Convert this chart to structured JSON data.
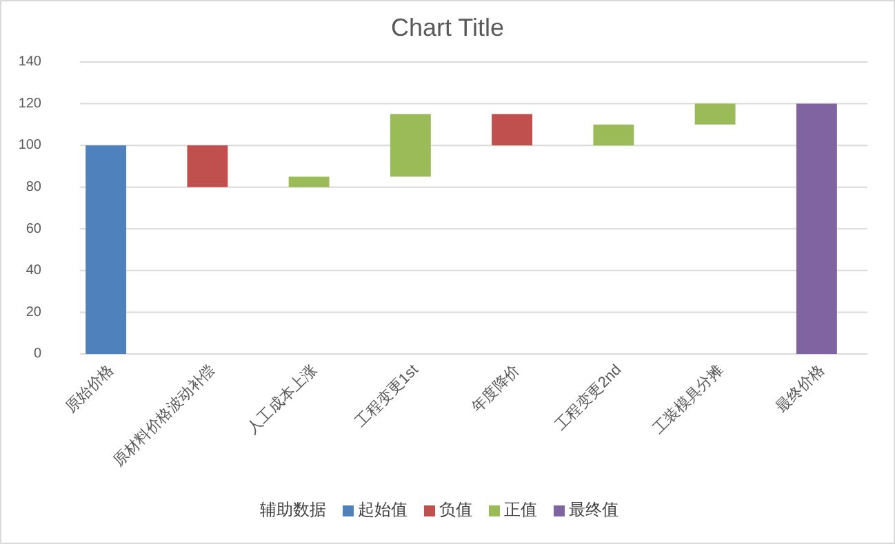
{
  "chart_data": {
    "type": "bar",
    "title": "Chart Title",
    "categories": [
      "原始价格",
      "原材料价格波动补偿",
      "人工成本上涨",
      "工程变更1st",
      "年度降价",
      "工程变更2nd",
      "工装模具分摊",
      "最终价格"
    ],
    "series": [
      {
        "name": "起始值",
        "color": "#4f81bd",
        "values": [
          100,
          null,
          null,
          null,
          null,
          null,
          null,
          null
        ],
        "base": [
          0,
          null,
          null,
          null,
          null,
          null,
          null,
          null
        ]
      },
      {
        "name": "负值",
        "color": "#c0504d",
        "values": [
          null,
          -20,
          null,
          null,
          -15,
          null,
          null,
          null
        ],
        "base": [
          null,
          100,
          null,
          null,
          115,
          null,
          null,
          null
        ]
      },
      {
        "name": "正值",
        "color": "#9bbb59",
        "values": [
          null,
          null,
          5,
          30,
          null,
          10,
          10,
          null
        ],
        "base": [
          null,
          null,
          80,
          85,
          null,
          100,
          110,
          null
        ]
      },
      {
        "name": "最终值",
        "color": "#8064a2",
        "values": [
          null,
          null,
          null,
          null,
          null,
          null,
          null,
          120
        ],
        "base": [
          null,
          null,
          null,
          null,
          null,
          null,
          null,
          0
        ]
      }
    ],
    "legend_title": "辅助数据",
    "legend": "bottom",
    "ylim": [
      0,
      140
    ],
    "yticks": [
      0,
      20,
      40,
      60,
      80,
      100,
      120,
      140
    ],
    "grid": "y"
  }
}
